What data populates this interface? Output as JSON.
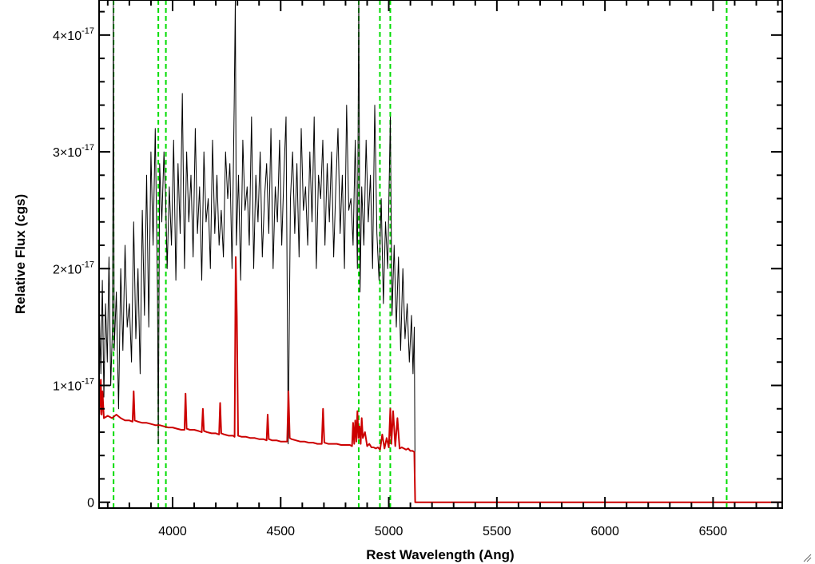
{
  "chart_data": {
    "type": "line",
    "title": "",
    "xlabel": "Rest Wavelength (Ang)",
    "ylabel": "Relative Flux (cgs)",
    "xlim": [
      3660,
      6820
    ],
    "ylim": [
      -0.05,
      4.3
    ],
    "y_unit_exponent": -17,
    "x_ticks": [
      4000,
      4500,
      5000,
      5500,
      6000,
      6500
    ],
    "y_ticks": [
      {
        "value": 0,
        "mantissa": "0",
        "exponent": ""
      },
      {
        "value": 1,
        "mantissa": "1",
        "exponent": "-17"
      },
      {
        "value": 2,
        "mantissa": "2",
        "exponent": "-17"
      },
      {
        "value": 3,
        "mantissa": "3",
        "exponent": "-17"
      },
      {
        "value": 4,
        "mantissa": "4",
        "exponent": "-17"
      }
    ],
    "x_minor_step": 100,
    "y_minor_step": 0.2,
    "grid": false,
    "legend": "none",
    "series": [
      {
        "color": "#000000",
        "comment_for_reader": "observed spectrum (flux in units of 1e-17)",
        "x": [
          3662,
          3668,
          3675,
          3682,
          3690,
          3698,
          3706,
          3714,
          3722,
          3726,
          3730,
          3740,
          3750,
          3760,
          3770,
          3780,
          3790,
          3800,
          3810,
          3820,
          3830,
          3840,
          3850,
          3860,
          3870,
          3880,
          3890,
          3900,
          3910,
          3920,
          3930,
          3934,
          3940,
          3950,
          3960,
          3968,
          3975,
          3985,
          3995,
          4005,
          4015,
          4025,
          4035,
          4045,
          4055,
          4065,
          4075,
          4085,
          4095,
          4105,
          4115,
          4125,
          4135,
          4145,
          4155,
          4165,
          4175,
          4185,
          4195,
          4205,
          4215,
          4225,
          4235,
          4245,
          4255,
          4265,
          4275,
          4285,
          4290,
          4295,
          4305,
          4315,
          4325,
          4335,
          4345,
          4355,
          4365,
          4375,
          4385,
          4395,
          4405,
          4415,
          4425,
          4435,
          4445,
          4455,
          4465,
          4475,
          4485,
          4495,
          4505,
          4515,
          4525,
          4535,
          4545,
          4555,
          4565,
          4575,
          4585,
          4595,
          4605,
          4615,
          4625,
          4635,
          4645,
          4655,
          4665,
          4675,
          4685,
          4695,
          4705,
          4715,
          4725,
          4735,
          4745,
          4755,
          4765,
          4775,
          4785,
          4795,
          4805,
          4815,
          4825,
          4835,
          4845,
          4855,
          4861,
          4867,
          4875,
          4885,
          4895,
          4905,
          4915,
          4925,
          4935,
          4945,
          4955,
          4965,
          4975,
          4985,
          4995,
          5007,
          5015,
          5025,
          5035,
          5045,
          5055,
          5065,
          5075,
          5085,
          5095,
          5105,
          5112,
          5118,
          5122
        ],
        "y": [
          1.6,
          1.1,
          1.9,
          0.9,
          1.7,
          1.2,
          2.1,
          1.0,
          1.5,
          4.3,
          1.3,
          1.8,
          0.8,
          2.0,
          1.3,
          2.2,
          1.5,
          1.7,
          1.2,
          2.4,
          1.4,
          2.0,
          1.1,
          2.5,
          1.6,
          2.8,
          1.5,
          3.0,
          2.2,
          3.2,
          1.8,
          0.5,
          2.9,
          2.4,
          3.0,
          2.6,
          2.0,
          2.7,
          2.2,
          3.1,
          1.9,
          2.9,
          2.3,
          3.5,
          2.0,
          3.0,
          2.4,
          2.8,
          2.1,
          3.2,
          2.3,
          2.7,
          1.9,
          3.0,
          2.4,
          2.6,
          2.0,
          3.1,
          2.3,
          2.8,
          2.2,
          2.5,
          2.1,
          3.0,
          2.6,
          2.9,
          2.0,
          3.4,
          4.3,
          2.2,
          2.8,
          1.9,
          3.1,
          2.5,
          2.7,
          2.2,
          3.3,
          2.0,
          2.8,
          2.4,
          3.0,
          2.1,
          2.6,
          2.9,
          2.3,
          3.2,
          2.0,
          2.7,
          2.4,
          3.1,
          2.2,
          2.8,
          3.3,
          0.5,
          2.6,
          3.0,
          2.3,
          2.9,
          2.1,
          3.2,
          2.5,
          2.7,
          2.2,
          3.0,
          2.4,
          3.3,
          2.0,
          2.8,
          2.6,
          3.1,
          2.2,
          2.9,
          2.4,
          3.0,
          2.1,
          2.7,
          3.2,
          2.3,
          2.8,
          2.0,
          3.4,
          2.5,
          2.6,
          2.2,
          3.1,
          2.0,
          4.3,
          1.8,
          2.7,
          2.2,
          3.1,
          2.4,
          2.8,
          2.0,
          3.4,
          2.3,
          1.9,
          2.6,
          1.7,
          2.4,
          2.0,
          3.3,
          1.6,
          2.2,
          1.5,
          2.1,
          1.3,
          2.0,
          1.4,
          1.7,
          1.2,
          1.6,
          1.1,
          1.5,
          0.0
        ]
      },
      {
        "color": "#cc0000",
        "comment_for_reader": "model / continuum fit (flux in units of 1e-17)",
        "x": [
          3662,
          3668,
          3672,
          3676,
          3682,
          3700,
          3720,
          3740,
          3760,
          3780,
          3800,
          3815,
          3820,
          3825,
          3840,
          3860,
          3880,
          3900,
          3920,
          3940,
          3960,
          3980,
          4000,
          4020,
          4040,
          4055,
          4060,
          4065,
          4080,
          4100,
          4120,
          4135,
          4140,
          4145,
          4160,
          4180,
          4200,
          4215,
          4220,
          4225,
          4240,
          4260,
          4280,
          4287,
          4292,
          4297,
          4303,
          4320,
          4340,
          4360,
          4380,
          4400,
          4420,
          4435,
          4440,
          4445,
          4460,
          4480,
          4500,
          4520,
          4530,
          4536,
          4542,
          4550,
          4570,
          4590,
          4610,
          4630,
          4650,
          4670,
          4690,
          4696,
          4702,
          4720,
          4740,
          4760,
          4780,
          4800,
          4820,
          4830,
          4835,
          4840,
          4845,
          4850,
          4855,
          4860,
          4865,
          4870,
          4875,
          4880,
          4890,
          4900,
          4910,
          4920,
          4930,
          4940,
          4950,
          4960,
          4970,
          4980,
          4990,
          5000,
          5007,
          5012,
          5020,
          5030,
          5040,
          5050,
          5060,
          5070,
          5080,
          5090,
          5100,
          5110,
          5118,
          5122,
          5130,
          5200,
          5400,
          5800,
          6200,
          6600,
          6820
        ],
        "y": [
          0.75,
          1.05,
          0.75,
          0.95,
          0.72,
          0.74,
          0.72,
          0.75,
          0.72,
          0.7,
          0.7,
          0.69,
          0.95,
          0.7,
          0.69,
          0.68,
          0.68,
          0.67,
          0.66,
          0.66,
          0.65,
          0.64,
          0.64,
          0.63,
          0.62,
          0.62,
          0.93,
          0.63,
          0.62,
          0.62,
          0.61,
          0.6,
          0.8,
          0.61,
          0.6,
          0.59,
          0.59,
          0.58,
          0.85,
          0.59,
          0.58,
          0.57,
          0.57,
          0.56,
          2.1,
          1.6,
          0.57,
          0.56,
          0.56,
          0.55,
          0.55,
          0.54,
          0.54,
          0.53,
          0.75,
          0.54,
          0.53,
          0.53,
          0.52,
          0.52,
          0.52,
          0.95,
          0.55,
          0.54,
          0.53,
          0.52,
          0.52,
          0.51,
          0.51,
          0.5,
          0.5,
          0.8,
          0.51,
          0.5,
          0.5,
          0.5,
          0.49,
          0.49,
          0.49,
          0.48,
          0.68,
          0.5,
          0.7,
          0.52,
          0.78,
          0.55,
          0.65,
          0.5,
          0.72,
          0.55,
          0.6,
          0.48,
          0.5,
          0.47,
          0.47,
          0.46,
          0.47,
          0.45,
          0.58,
          0.46,
          0.55,
          0.47,
          0.8,
          0.5,
          0.78,
          0.48,
          0.72,
          0.46,
          0.47,
          0.46,
          0.45,
          0.46,
          0.44,
          0.44,
          0.43,
          0.0,
          0.0,
          0.0,
          0.0,
          0.0,
          0.0,
          0.0,
          0.0
        ]
      }
    ],
    "vertical_lines": {
      "color": "#00dd00",
      "style": "dashed",
      "x": [
        3727,
        3934,
        3969,
        4861,
        4959,
        5007,
        6563
      ]
    }
  }
}
